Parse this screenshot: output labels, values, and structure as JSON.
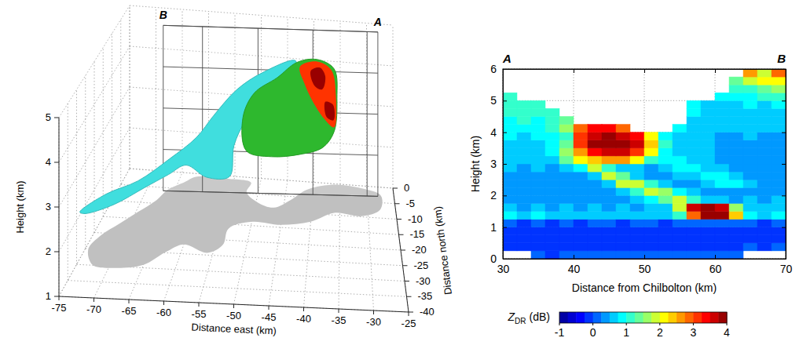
{
  "chart_data": [
    {
      "type": "surface3d",
      "xlabel": "Distance east (km)",
      "ylabel": "Distance north (km)",
      "zlabel": "Height (km)",
      "xlim": [
        -75,
        -25
      ],
      "xticks": [
        -75,
        -70,
        -65,
        -60,
        -55,
        -50,
        -45,
        -40,
        -35,
        -30,
        -25
      ],
      "ylim": [
        -40,
        0
      ],
      "yticks": [
        0,
        -5,
        -10,
        -15,
        -20,
        -25,
        -30,
        -35,
        -40
      ],
      "zlim": [
        1,
        5
      ],
      "zticks": [
        1,
        2,
        3,
        4,
        5
      ],
      "grid": true,
      "section": {
        "labels": [
          "B",
          "A"
        ],
        "x": [
          -67,
          -28
        ],
        "y": [
          -6,
          -3
        ]
      },
      "surfaces": [
        {
          "color": "#40dede",
          "points": [
            [
              -74.5,
              -30,
              2.2
            ],
            [
              -71,
              -28,
              2.5
            ],
            [
              -66.5,
              -26,
              2.7
            ],
            [
              -62,
              -24,
              3.1
            ],
            [
              -58,
              -22,
              3.5
            ],
            [
              -55.5,
              -20,
              3.9
            ],
            [
              -52,
              -18,
              4.4
            ],
            [
              -48,
              -16,
              4.7
            ],
            [
              -42.5,
              -14,
              4.9
            ],
            [
              -43.5,
              -14,
              4.4
            ],
            [
              -47.5,
              -14,
              3.9
            ],
            [
              -51,
              -14,
              3.4
            ],
            [
              -53,
              -14,
              2.8
            ],
            [
              -53.5,
              -16,
              2.2
            ],
            [
              -57,
              -18,
              2.3
            ],
            [
              -60,
              -20,
              2.7
            ],
            [
              -62.5,
              -22,
              2.6
            ],
            [
              -66,
              -24,
              2.4
            ],
            [
              -70,
              -27,
              2.2
            ],
            [
              -74,
              -29,
              2.1
            ]
          ]
        },
        {
          "color": "#2eb82e",
          "points": [
            [
              -51.4,
              -10,
              2.4
            ],
            [
              -52,
              -10,
              3.2
            ],
            [
              -50,
              -10,
              3.8
            ],
            [
              -46,
              -10,
              4.2
            ],
            [
              -42.5,
              -10,
              4.6
            ],
            [
              -39,
              -10,
              4.7
            ],
            [
              -36,
              -10,
              4.5
            ],
            [
              -35.5,
              -10,
              3.8
            ],
            [
              -36,
              -10,
              3.0
            ],
            [
              -38,
              -10,
              2.6
            ],
            [
              -42,
              -10,
              2.4
            ],
            [
              -47,
              -10,
              2.3
            ]
          ]
        }
      ],
      "section_fill": [
        {
          "value": 3.0,
          "points": [
            [
              -42,
              -10,
              4.5
            ],
            [
              -39,
              -10,
              4.65
            ],
            [
              -36.5,
              -10,
              4.47
            ],
            [
              -35.7,
              -10,
              3.87
            ],
            [
              -36,
              -10,
              3.1
            ],
            [
              -37.8,
              -10,
              3.3
            ],
            [
              -39.8,
              -10,
              3.7
            ],
            [
              -41.2,
              -10,
              4.1
            ]
          ]
        },
        {
          "value": 4.0,
          "points": [
            [
              -40.1,
              -10,
              4.42
            ],
            [
              -38.5,
              -10,
              4.51
            ],
            [
              -37.55,
              -10,
              4.31
            ],
            [
              -38.1,
              -10,
              3.99
            ],
            [
              -39.4,
              -10,
              4.06
            ]
          ]
        },
        {
          "value": 3.8,
          "points": [
            [
              -37.55,
              -10,
              3.7
            ],
            [
              -36.2,
              -10,
              3.64
            ],
            [
              -36.1,
              -10,
              3.27
            ],
            [
              -37.3,
              -10,
              3.33
            ]
          ]
        }
      ],
      "shadow": {
        "color": "#c0c0c0",
        "points": [
          [
            -74.5,
            -25.2
          ],
          [
            -73.7,
            -20.7
          ],
          [
            -71.7,
            -16.8
          ],
          [
            -69.6,
            -12.9
          ],
          [
            -67.4,
            -8.9
          ],
          [
            -66.3,
            -5.6
          ],
          [
            -63.8,
            -2.8
          ],
          [
            -62.2,
            -1.0
          ],
          [
            -56.1,
            -0.9
          ],
          [
            -51.7,
            -1.6
          ],
          [
            -52.1,
            -4.6
          ],
          [
            -49.7,
            -7.6
          ],
          [
            -46.7,
            -8.9
          ],
          [
            -43.9,
            -6.1
          ],
          [
            -41.2,
            -2.5
          ],
          [
            -36.8,
            -0.4
          ],
          [
            -31.1,
            -0.8
          ],
          [
            -27.4,
            -2.8
          ],
          [
            -27.8,
            -7.3
          ],
          [
            -31.2,
            -9.8
          ],
          [
            -36.0,
            -9.3
          ],
          [
            -40.0,
            -12.6
          ],
          [
            -45.0,
            -14.2
          ],
          [
            -50.0,
            -13.8
          ],
          [
            -53.6,
            -16.4
          ],
          [
            -53.8,
            -21.5
          ],
          [
            -55.9,
            -24.3
          ],
          [
            -60.0,
            -22.1
          ],
          [
            -62.4,
            -24.8
          ],
          [
            -65.0,
            -29.1
          ],
          [
            -69.0,
            -30.5
          ],
          [
            -72.6,
            -29.9
          ]
        ]
      }
    },
    {
      "type": "heatmap",
      "xlabel": "Distance from Chilbolton (km)",
      "ylabel": "Height (km)",
      "xlim": [
        30,
        70
      ],
      "xticks": [
        30,
        40,
        50,
        60,
        70
      ],
      "ylim": [
        0,
        6
      ],
      "yticks": [
        0,
        1,
        2,
        3,
        4,
        5,
        6
      ],
      "grid": true,
      "section_labels": [
        "A",
        "B"
      ],
      "x": [
        31,
        33,
        35,
        37,
        39,
        41,
        43,
        45,
        47,
        49,
        51,
        53,
        55,
        57,
        59,
        61,
        63,
        65,
        67,
        69
      ],
      "y": [
        0.125,
        0.375,
        0.625,
        0.875,
        1.125,
        1.375,
        1.625,
        1.875,
        2.125,
        2.375,
        2.625,
        2.875,
        3.125,
        3.375,
        3.625,
        3.875,
        4.125,
        4.375,
        4.625,
        4.875,
        5.125,
        5.375,
        5.625,
        5.875
      ],
      "values": [
        [
          null,
          null,
          0.0,
          -0.1,
          0.0,
          0.1,
          0.0,
          0.0,
          0.1,
          0.0,
          0.0,
          0.1,
          0.0,
          0.1,
          0.0,
          0.2,
          0.1,
          null,
          null,
          null
        ],
        [
          -0.1,
          -0.2,
          -0.1,
          -0.2,
          -0.1,
          -0.1,
          -0.2,
          -0.1,
          -0.2,
          -0.1,
          -0.2,
          -0.1,
          -0.2,
          -0.1,
          -0.1,
          -0.2,
          -0.1,
          0.0,
          -0.1,
          0.0
        ],
        [
          -0.2,
          -0.2,
          -0.1,
          -0.2,
          -0.2,
          -0.1,
          -0.2,
          -0.2,
          -0.1,
          -0.2,
          -0.2,
          -0.1,
          -0.2,
          -0.2,
          -0.1,
          -0.2,
          -0.1,
          -0.1,
          -0.2,
          -0.1
        ],
        [
          -0.1,
          -0.2,
          -0.2,
          -0.1,
          -0.2,
          -0.2,
          -0.1,
          -0.2,
          -0.2,
          -0.1,
          -0.2,
          -0.1,
          -0.2,
          -0.1,
          -0.2,
          -0.1,
          -0.2,
          -0.1,
          -0.1,
          -0.2
        ],
        [
          0.0,
          -0.1,
          0.0,
          -0.1,
          0.0,
          -0.1,
          0.0,
          0.0,
          -0.1,
          0.0,
          0.0,
          -0.1,
          0.0,
          0.1,
          0.0,
          0.1,
          0.0,
          0.0,
          -0.1,
          0.0
        ],
        [
          0.8,
          0.7,
          0.8,
          0.7,
          0.6,
          0.7,
          0.6,
          0.7,
          0.6,
          0.7,
          0.6,
          0.7,
          1.0,
          2.8,
          3.8,
          3.9,
          2.4,
          0.8,
          0.7,
          0.8
        ],
        [
          0.5,
          0.4,
          0.5,
          0.4,
          0.5,
          0.4,
          0.5,
          0.4,
          0.5,
          0.4,
          0.5,
          0.6,
          1.8,
          3.5,
          3.9,
          3.6,
          1.6,
          0.6,
          0.5,
          0.6
        ],
        [
          0.4,
          0.3,
          0.4,
          0.3,
          0.4,
          0.3,
          0.4,
          0.3,
          0.4,
          0.5,
          0.8,
          1.4,
          1.9,
          1.2,
          0.6,
          0.5,
          0.4,
          0.5,
          0.4,
          0.5
        ],
        [
          0.4,
          0.4,
          0.3,
          0.4,
          0.3,
          0.4,
          0.3,
          0.4,
          0.5,
          1.0,
          1.9,
          1.7,
          0.8,
          0.5,
          0.4,
          0.4,
          0.3,
          0.4,
          0.3,
          0.4
        ],
        [
          0.4,
          0.3,
          0.4,
          0.3,
          0.4,
          0.3,
          0.4,
          0.6,
          1.8,
          1.9,
          1.0,
          0.5,
          0.4,
          0.4,
          0.6,
          0.8,
          0.9,
          0.5,
          0.4,
          0.4
        ],
        [
          0.4,
          0.4,
          0.3,
          0.4,
          0.4,
          0.4,
          0.7,
          1.8,
          1.4,
          0.6,
          0.4,
          0.4,
          0.5,
          0.7,
          0.9,
          0.8,
          0.5,
          0.4,
          0.4,
          0.3
        ],
        [
          0.5,
          0.4,
          0.5,
          0.4,
          0.5,
          0.9,
          1.9,
          1.2,
          0.6,
          0.5,
          0.4,
          0.6,
          0.8,
          0.9,
          0.7,
          0.5,
          0.4,
          0.4,
          0.3,
          0.4
        ],
        [
          0.6,
          0.5,
          0.6,
          0.7,
          1.4,
          2.0,
          2.4,
          2.6,
          2.5,
          2.2,
          1.2,
          0.8,
          0.9,
          0.7,
          0.5,
          0.4,
          0.4,
          0.3,
          0.4,
          0.4
        ],
        [
          0.6,
          0.6,
          0.7,
          0.8,
          1.6,
          2.6,
          3.4,
          3.7,
          3.6,
          3.2,
          2.0,
          0.9,
          0.7,
          0.6,
          0.5,
          0.4,
          0.4,
          0.4,
          0.3,
          0.4
        ],
        [
          0.7,
          0.6,
          0.7,
          0.9,
          1.4,
          3.0,
          3.8,
          3.9,
          3.8,
          3.5,
          2.4,
          1.0,
          0.6,
          0.5,
          0.5,
          0.4,
          0.4,
          0.4,
          0.4,
          0.3
        ],
        [
          0.8,
          0.7,
          0.8,
          0.9,
          1.2,
          3.2,
          3.7,
          3.9,
          3.7,
          3.3,
          2.2,
          0.9,
          0.6,
          0.5,
          0.5,
          0.4,
          0.4,
          0.5,
          0.4,
          0.4
        ],
        [
          0.8,
          0.9,
          0.8,
          1.0,
          1.6,
          2.8,
          3.4,
          3.3,
          2.9,
          null,
          null,
          null,
          0.8,
          0.7,
          0.6,
          0.5,
          0.5,
          0.6,
          0.5,
          0.5
        ],
        [
          0.9,
          1.0,
          0.9,
          1.1,
          1.4,
          null,
          null,
          null,
          null,
          null,
          null,
          null,
          null,
          0.7,
          0.6,
          0.6,
          0.5,
          0.6,
          0.6,
          0.5
        ],
        [
          1.0,
          1.0,
          1.1,
          1.2,
          null,
          null,
          null,
          null,
          null,
          null,
          null,
          null,
          null,
          0.8,
          0.7,
          0.6,
          0.6,
          0.7,
          0.6,
          0.7
        ],
        [
          1.0,
          1.1,
          1.2,
          null,
          null,
          null,
          null,
          null,
          null,
          null,
          null,
          null,
          null,
          0.9,
          0.7,
          0.7,
          0.6,
          0.8,
          0.7,
          0.8
        ],
        [
          1.1,
          null,
          null,
          null,
          null,
          null,
          null,
          null,
          null,
          null,
          null,
          null,
          null,
          null,
          null,
          0.9,
          0.8,
          0.9,
          1.0,
          1.1
        ],
        [
          null,
          null,
          null,
          null,
          null,
          null,
          null,
          null,
          null,
          null,
          null,
          null,
          null,
          null,
          null,
          null,
          1.0,
          1.2,
          1.4,
          1.6
        ],
        [
          null,
          null,
          null,
          null,
          null,
          null,
          null,
          null,
          null,
          null,
          null,
          null,
          null,
          null,
          null,
          null,
          1.3,
          1.8,
          2.2,
          2.0
        ],
        [
          null,
          null,
          null,
          null,
          null,
          null,
          null,
          null,
          null,
          null,
          null,
          null,
          null,
          null,
          null,
          null,
          null,
          2.5,
          1.9,
          2.8
        ]
      ],
      "colorbar": {
        "title": [
          "Z",
          "DR",
          "(dB)"
        ],
        "range": [
          -1,
          4
        ],
        "ticks": [
          -1,
          0,
          1,
          2,
          3,
          4
        ]
      }
    }
  ]
}
